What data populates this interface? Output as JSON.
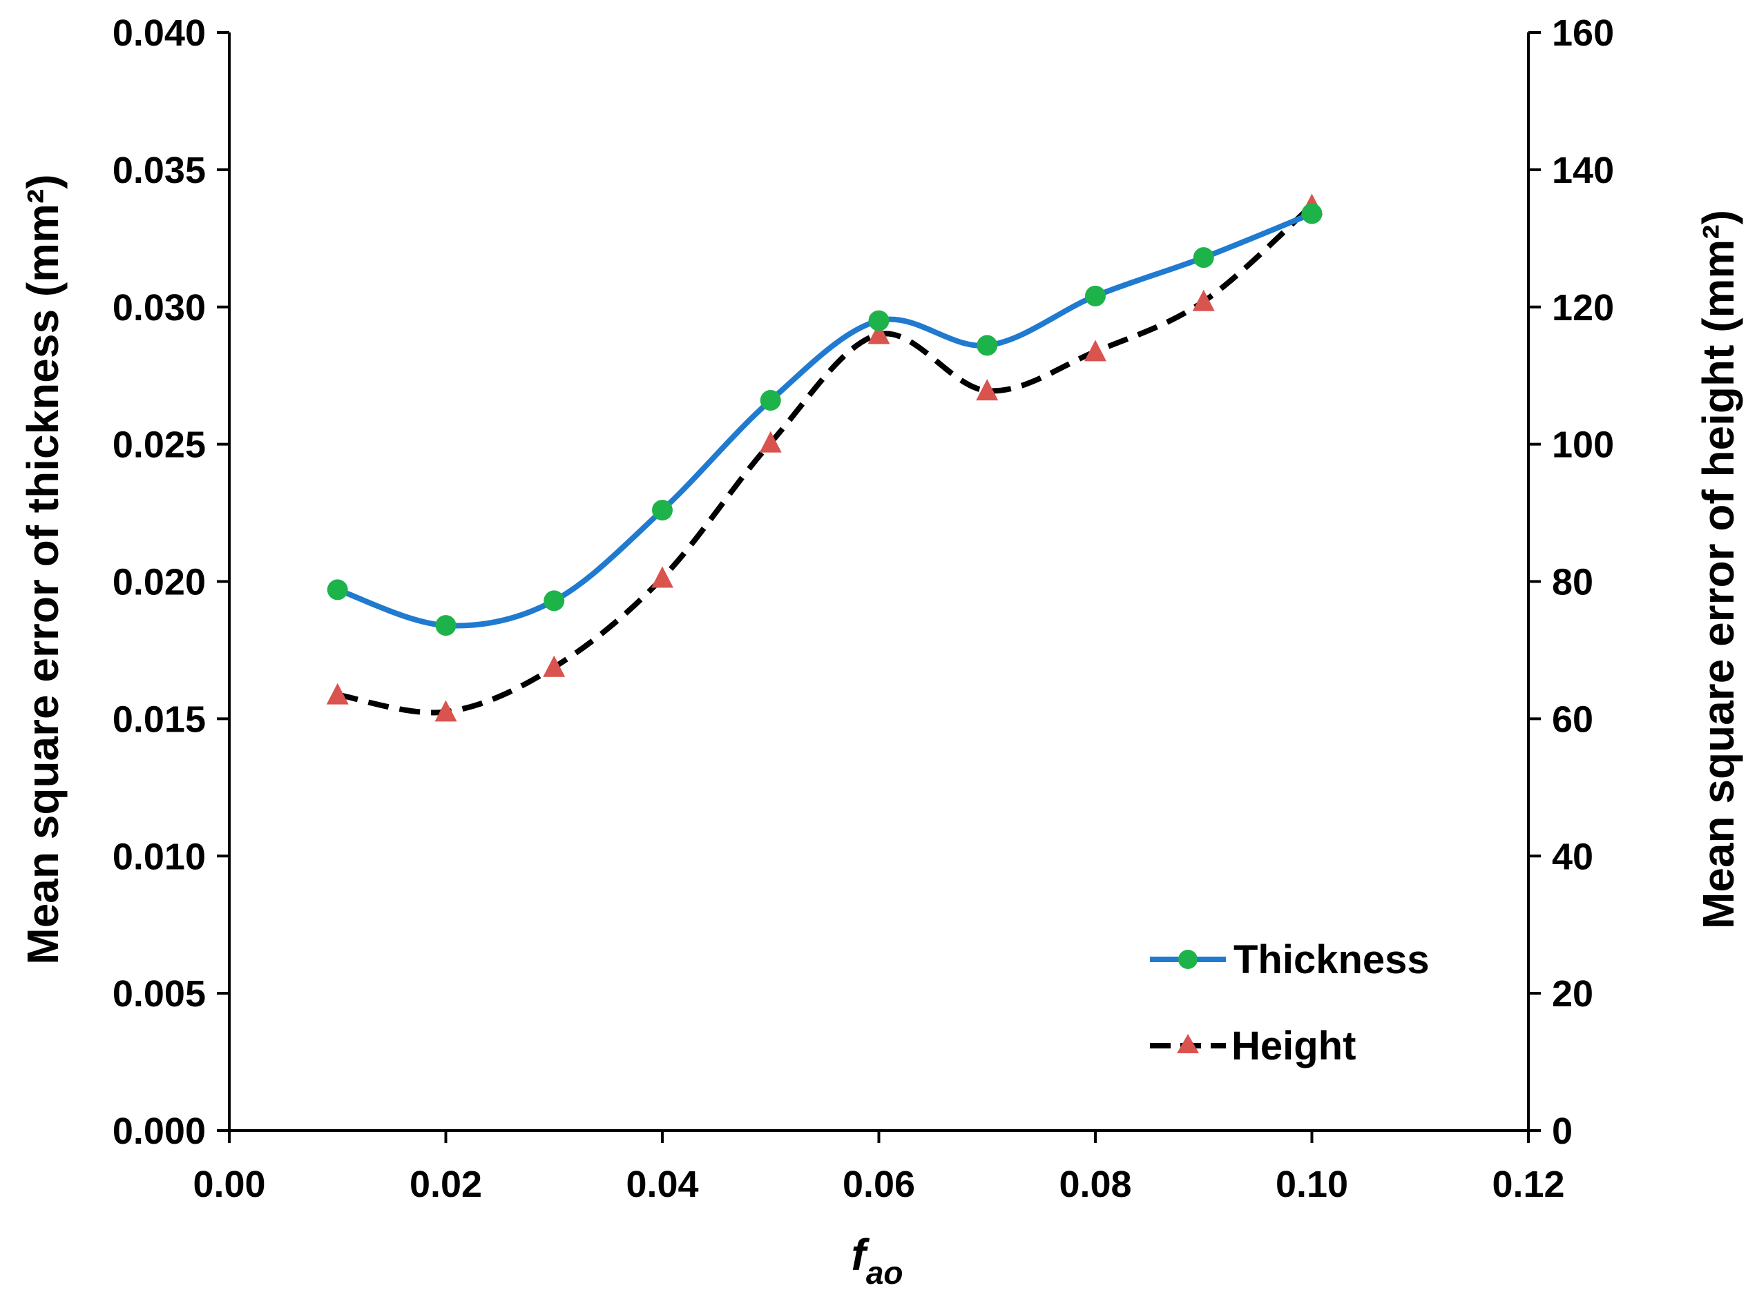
{
  "chart_data": {
    "type": "line",
    "title": "",
    "xlabel": "f",
    "xlabel_sub": "ao",
    "ylabel_left": "Mean square error of thickness (mm²)",
    "ylabel_right": "Mean square error of height (mm²)",
    "xlim": [
      0,
      0.12
    ],
    "ylim_left": [
      0,
      0.04
    ],
    "ylim_right": [
      0,
      160
    ],
    "x_ticks": [
      "0.00",
      "0.02",
      "0.04",
      "0.06",
      "0.08",
      "0.10",
      "0.12"
    ],
    "y_left_ticks": [
      "0.000",
      "0.005",
      "0.010",
      "0.015",
      "0.020",
      "0.025",
      "0.030",
      "0.035",
      "0.040"
    ],
    "y_right_ticks": [
      "0",
      "20",
      "40",
      "60",
      "80",
      "100",
      "120",
      "140",
      "160"
    ],
    "x": [
      0.01,
      0.02,
      0.03,
      0.04,
      0.05,
      0.06,
      0.07,
      0.08,
      0.09,
      0.1
    ],
    "series": [
      {
        "name": "Thickness",
        "axis": "left",
        "values": [
          0.0197,
          0.0184,
          0.0193,
          0.0226,
          0.0266,
          0.0295,
          0.0286,
          0.0304,
          0.0318,
          0.0334
        ],
        "line_color": "#1f7ad0",
        "line_style": "solid",
        "marker": "circle",
        "marker_color": "#1db34a"
      },
      {
        "name": "Height",
        "axis": "right",
        "values": [
          63.5,
          61.0,
          67.5,
          80.5,
          100.2,
          116.0,
          107.8,
          113.5,
          120.8,
          134.8
        ],
        "line_color": "#000000",
        "line_style": "dashed",
        "marker": "triangle",
        "marker_color": "#d9534f"
      }
    ],
    "legend": {
      "position": "bottom-right",
      "entries": [
        "Thickness",
        "Height"
      ]
    },
    "grid": false
  }
}
